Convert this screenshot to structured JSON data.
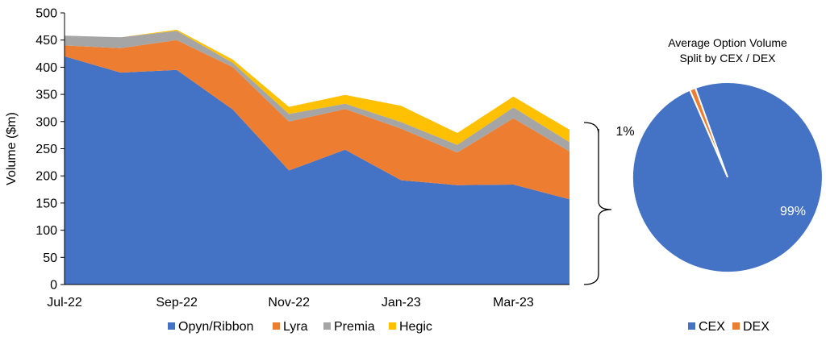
{
  "chart_data": [
    {
      "type": "area",
      "stacked": true,
      "x": [
        "Jul-22",
        "Aug-22",
        "Sep-22",
        "Oct-22",
        "Nov-22",
        "Dec-22",
        "Jan-23",
        "Feb-23",
        "Mar-23",
        "Apr-23"
      ],
      "xtick_labels": [
        "Jul-22",
        "Sep-22",
        "Nov-22",
        "Jan-23",
        "Mar-23"
      ],
      "series": [
        {
          "name": "Opyn/Ribbon",
          "color": "#4472C4",
          "values": [
            420,
            390,
            395,
            322,
            210,
            248,
            192,
            183,
            184,
            157
          ]
        },
        {
          "name": "Lyra",
          "color": "#ED7D31",
          "values": [
            20,
            45,
            55,
            78,
            90,
            75,
            95,
            60,
            122,
            88
          ]
        },
        {
          "name": "Premia",
          "color": "#A5A5A5",
          "values": [
            18,
            20,
            17,
            8,
            14,
            10,
            12,
            14,
            20,
            17
          ]
        },
        {
          "name": "Hegic",
          "color": "#FFC000",
          "values": [
            0,
            0,
            2,
            6,
            13,
            16,
            30,
            22,
            20,
            23
          ]
        }
      ],
      "ylabel": "Volume ($m)",
      "xlabel": "",
      "ylim": [
        0,
        500
      ],
      "yticks": [
        0,
        50,
        100,
        150,
        200,
        250,
        300,
        350,
        400,
        450,
        500
      ],
      "grid": false,
      "legend_position": "bottom"
    },
    {
      "type": "pie",
      "title": "Average Option Volume\nSplit by CEX / DEX",
      "title_lines": [
        "Average Option Volume",
        "Split by CEX / DEX"
      ],
      "labels": [
        "CEX",
        "DEX"
      ],
      "values": [
        99,
        1
      ],
      "colors": [
        "#4472C4",
        "#ED7D31"
      ],
      "slice_labels": [
        "99%",
        "1%"
      ],
      "legend_position": "bottom"
    }
  ]
}
